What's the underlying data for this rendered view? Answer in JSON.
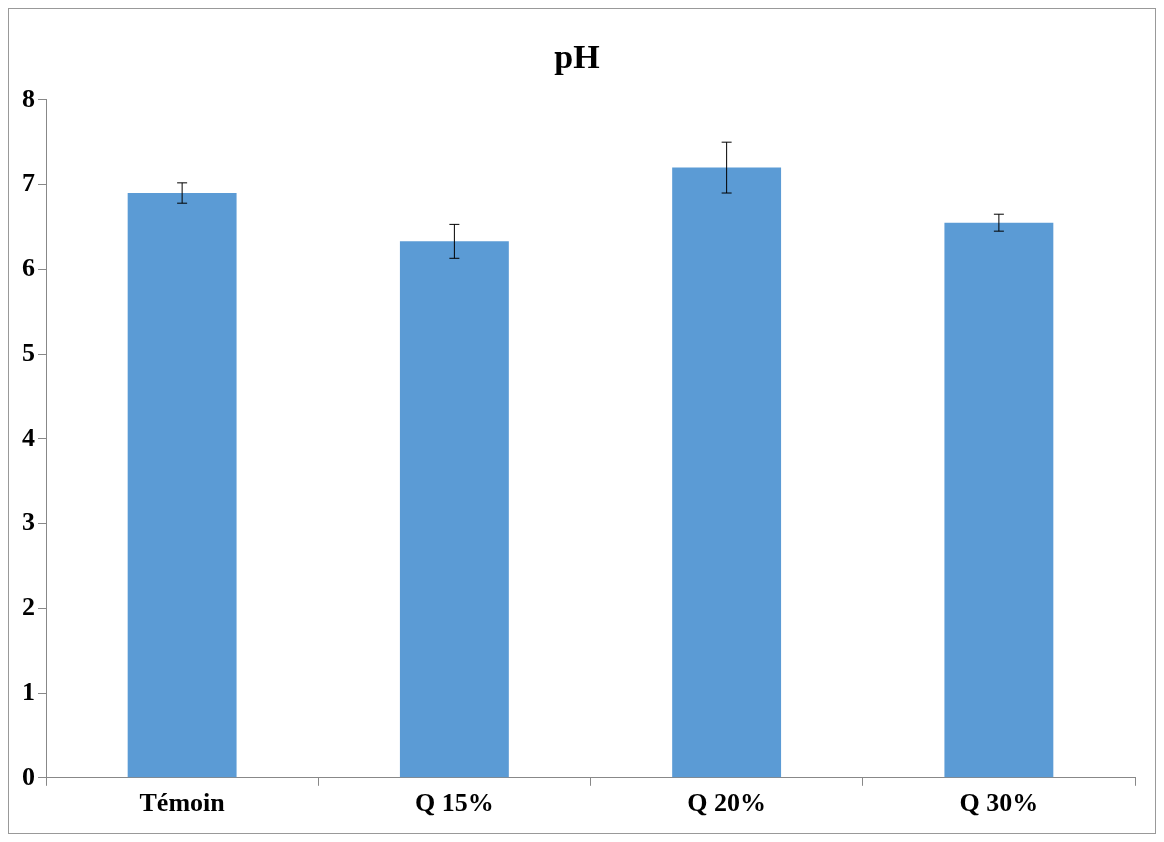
{
  "chart_data": {
    "type": "bar",
    "title": "pH",
    "categories": [
      "Témoin",
      "Q 15%",
      "Q 20%",
      "Q 30%"
    ],
    "values": [
      6.9,
      6.33,
      7.2,
      6.55
    ],
    "errors": [
      0.12,
      0.2,
      0.3,
      0.1
    ],
    "color": "#5b9bd5",
    "ylim": [
      0,
      8
    ],
    "yticks": [
      0,
      1,
      2,
      3,
      4,
      5,
      6,
      7,
      8
    ],
    "grid": false,
    "legend": false
  }
}
